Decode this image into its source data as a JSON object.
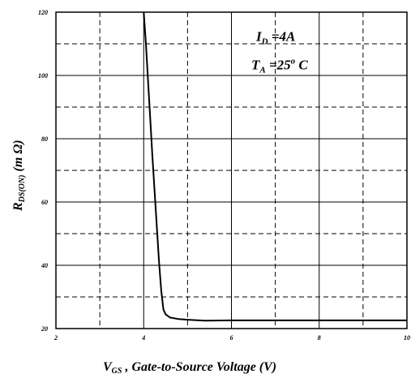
{
  "chart_data": {
    "type": "line",
    "title": "",
    "xlabel": {
      "main": "V",
      "sub": "GS",
      "rest": " , Gate-to-Source Voltage (V)"
    },
    "ylabel": {
      "main": "R",
      "sub": "DS(ON)",
      "rest": " (m Ω)"
    },
    "xlim": [
      2,
      10
    ],
    "ylim": [
      20,
      120
    ],
    "x_tick_labels": [
      "2",
      "4",
      "6",
      "8",
      "10"
    ],
    "y_tick_labels": [
      "20",
      "40",
      "60",
      "80",
      "100",
      "120"
    ],
    "x_major_grid": [
      4,
      6,
      8
    ],
    "x_minor_grid": [
      3,
      5,
      7,
      9
    ],
    "y_major_grid": [
      40,
      60,
      80,
      100
    ],
    "y_minor_grid": [
      30,
      50,
      70,
      90,
      110
    ],
    "annotations": [
      {
        "main": "I",
        "sub": "D",
        "rest": " =4A"
      },
      {
        "main": "T",
        "sub": "A",
        "rest": " =25",
        "sup": "o",
        "tail": " C"
      }
    ],
    "series": [
      {
        "x": [
          4.0,
          4.05,
          4.1,
          4.15,
          4.2,
          4.25,
          4.3,
          4.35,
          4.4,
          4.45,
          4.5,
          4.6,
          4.8,
          5.0,
          5.4,
          6.0,
          7.0,
          8.0,
          10.0
        ],
        "y": [
          120,
          110,
          98,
          86,
          74,
          63,
          52,
          41,
          32,
          26,
          24.5,
          23.5,
          23,
          22.8,
          22.5,
          22.6,
          22.6,
          22.6,
          22.6
        ]
      }
    ]
  }
}
